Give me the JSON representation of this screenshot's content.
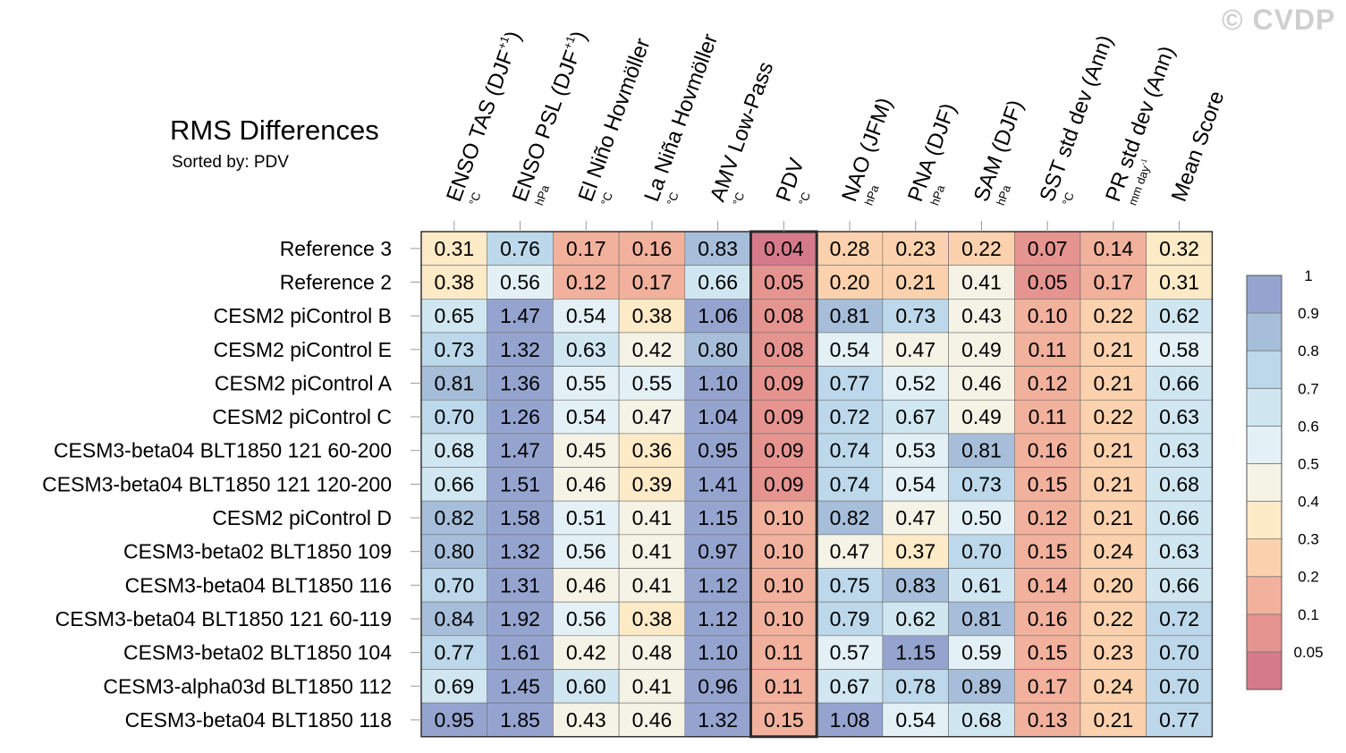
{
  "watermark": "© CVDP",
  "title": "RMS Differences",
  "subtitle": "Sorted by: PDV",
  "chart_data": {
    "type": "heatmap",
    "title": "RMS Differences",
    "sorted_by": "PDV",
    "highlight_column": "PDV",
    "columns": [
      {
        "name": "ENSO TAS (DJF",
        "sup": "+1",
        "close": ")",
        "unit": "°C"
      },
      {
        "name": "ENSO PSL (DJF",
        "sup": "+1",
        "close": ")",
        "unit": "hPa"
      },
      {
        "name": "El Niño Hovmöller",
        "unit": "°C"
      },
      {
        "name": "La Niña Hovmöller",
        "unit": "°C"
      },
      {
        "name": "AMV Low-Pass",
        "unit": "°C"
      },
      {
        "name": "PDV",
        "unit": "°C"
      },
      {
        "name": "NAO (JFM)",
        "unit": "hPa"
      },
      {
        "name": "PNA (DJF)",
        "unit": "hPa"
      },
      {
        "name": "SAM (DJF)",
        "unit": "hPa"
      },
      {
        "name": "SST std dev (Ann)",
        "unit": "°C"
      },
      {
        "name": "PR std dev (Ann)",
        "unit": "mm day",
        "unit_sup": "-1"
      },
      {
        "name": "Mean Score",
        "unit": ""
      }
    ],
    "rows": [
      {
        "name": "Reference 3",
        "values": [
          0.31,
          0.76,
          0.17,
          0.16,
          0.83,
          0.04,
          0.28,
          0.23,
          0.22,
          0.07,
          0.14,
          0.32
        ]
      },
      {
        "name": "Reference 2",
        "values": [
          0.38,
          0.56,
          0.12,
          0.17,
          0.66,
          0.05,
          0.2,
          0.21,
          0.41,
          0.05,
          0.17,
          0.31
        ]
      },
      {
        "name": "CESM2 piControl B",
        "values": [
          0.65,
          1.47,
          0.54,
          0.38,
          1.06,
          0.08,
          0.81,
          0.73,
          0.43,
          0.1,
          0.22,
          0.62
        ]
      },
      {
        "name": "CESM2 piControl E",
        "values": [
          0.73,
          1.32,
          0.63,
          0.42,
          0.8,
          0.08,
          0.54,
          0.47,
          0.49,
          0.11,
          0.21,
          0.58
        ]
      },
      {
        "name": "CESM2 piControl A",
        "values": [
          0.81,
          1.36,
          0.55,
          0.55,
          1.1,
          0.09,
          0.77,
          0.52,
          0.46,
          0.12,
          0.21,
          0.66
        ]
      },
      {
        "name": "CESM2 piControl C",
        "values": [
          0.7,
          1.26,
          0.54,
          0.47,
          1.04,
          0.09,
          0.72,
          0.67,
          0.49,
          0.11,
          0.22,
          0.63
        ]
      },
      {
        "name": "CESM3-beta04 BLT1850 121 60-200",
        "values": [
          0.68,
          1.47,
          0.45,
          0.36,
          0.95,
          0.09,
          0.74,
          0.53,
          0.81,
          0.16,
          0.21,
          0.63
        ]
      },
      {
        "name": "CESM3-beta04 BLT1850 121 120-200",
        "values": [
          0.66,
          1.51,
          0.46,
          0.39,
          1.41,
          0.09,
          0.74,
          0.54,
          0.73,
          0.15,
          0.21,
          0.68
        ]
      },
      {
        "name": "CESM2 piControl D",
        "values": [
          0.82,
          1.58,
          0.51,
          0.41,
          1.15,
          0.1,
          0.82,
          0.47,
          0.5,
          0.12,
          0.21,
          0.66
        ]
      },
      {
        "name": "CESM3-beta02 BLT1850 109",
        "values": [
          0.8,
          1.32,
          0.56,
          0.41,
          0.97,
          0.1,
          0.47,
          0.37,
          0.7,
          0.15,
          0.24,
          0.63
        ]
      },
      {
        "name": "CESM3-beta04 BLT1850 116",
        "values": [
          0.7,
          1.31,
          0.46,
          0.41,
          1.12,
          0.1,
          0.75,
          0.83,
          0.61,
          0.14,
          0.2,
          0.66
        ]
      },
      {
        "name": "CESM3-beta04 BLT1850 121 60-119",
        "values": [
          0.84,
          1.92,
          0.56,
          0.38,
          1.12,
          0.1,
          0.79,
          0.62,
          0.81,
          0.16,
          0.22,
          0.72
        ]
      },
      {
        "name": "CESM3-beta02 BLT1850 104",
        "values": [
          0.77,
          1.61,
          0.42,
          0.48,
          1.1,
          0.11,
          0.57,
          1.15,
          0.59,
          0.15,
          0.23,
          0.7
        ]
      },
      {
        "name": "CESM3-alpha03d BLT1850 112",
        "values": [
          0.69,
          1.45,
          0.6,
          0.41,
          0.96,
          0.11,
          0.67,
          0.78,
          0.89,
          0.17,
          0.24,
          0.7
        ]
      },
      {
        "name": "CESM3-beta04 BLT1850 118",
        "values": [
          0.95,
          1.85,
          0.43,
          0.46,
          1.32,
          0.15,
          1.08,
          0.54,
          0.68,
          0.13,
          0.21,
          0.77
        ]
      }
    ],
    "colorbar": {
      "bounds": [
        0.05,
        0.1,
        0.2,
        0.3,
        0.4,
        0.5,
        0.6,
        0.7,
        0.8,
        0.9,
        1
      ],
      "tick_labels": [
        "0.05",
        "0.1",
        "0.2",
        "0.3",
        "0.4",
        "0.5",
        "0.6",
        "0.7",
        "0.8",
        "0.9",
        "1"
      ],
      "colors": [
        "#d57a8b",
        "#e59490",
        "#f2b19c",
        "#fbd2ad",
        "#fdeac6",
        "#f5f3e6",
        "#e3f0f5",
        "#d0e6f1",
        "#bcd8ea",
        "#a6bed9",
        "#95a4cf"
      ]
    }
  }
}
